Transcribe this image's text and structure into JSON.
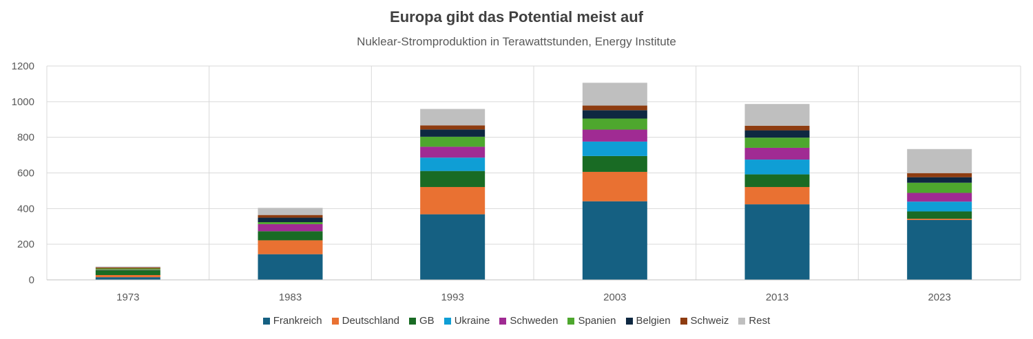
{
  "chart_data": {
    "type": "bar",
    "stacked": true,
    "title": "Europa gibt das Potential meist auf",
    "subtitle": "Nuklear-Stromproduktion in Terawattstunden, Energy Institute",
    "categories": [
      "1973",
      "1983",
      "1993",
      "2003",
      "2013",
      "2023"
    ],
    "ylim": [
      0,
      1200
    ],
    "yticks": [
      "0",
      "200",
      "400",
      "600",
      "800",
      "1000",
      "1200"
    ],
    "grid": true,
    "legend_position": "bottom",
    "series": [
      {
        "name": "Frankreich",
        "color": "#156082",
        "values": [
          15,
          144,
          368,
          441,
          424,
          336
        ]
      },
      {
        "name": "Deutschland",
        "color": "#E97132",
        "values": [
          12,
          78,
          153,
          165,
          97,
          7
        ]
      },
      {
        "name": "GB",
        "color": "#196B24",
        "values": [
          28,
          51,
          90,
          89,
          71,
          41
        ]
      },
      {
        "name": "Ukraine",
        "color": "#0F9ED5",
        "values": [
          0,
          0,
          75,
          81,
          83,
          55
        ]
      },
      {
        "name": "Schweden",
        "color": "#A02B93",
        "values": [
          2,
          40,
          61,
          67,
          66,
          49
        ]
      },
      {
        "name": "Spanien",
        "color": "#4EA72E",
        "values": [
          7,
          11,
          56,
          62,
          57,
          57
        ]
      },
      {
        "name": "Belgien",
        "color": "#0E2841",
        "values": [
          0,
          25,
          41,
          47,
          41,
          31
        ]
      },
      {
        "name": "Schweiz",
        "color": "#8E3C10",
        "values": [
          6,
          15,
          23,
          26,
          26,
          23
        ]
      },
      {
        "name": "Rest",
        "color": "#BFBFBF",
        "values": [
          5,
          40,
          92,
          128,
          122,
          135
        ]
      }
    ]
  }
}
